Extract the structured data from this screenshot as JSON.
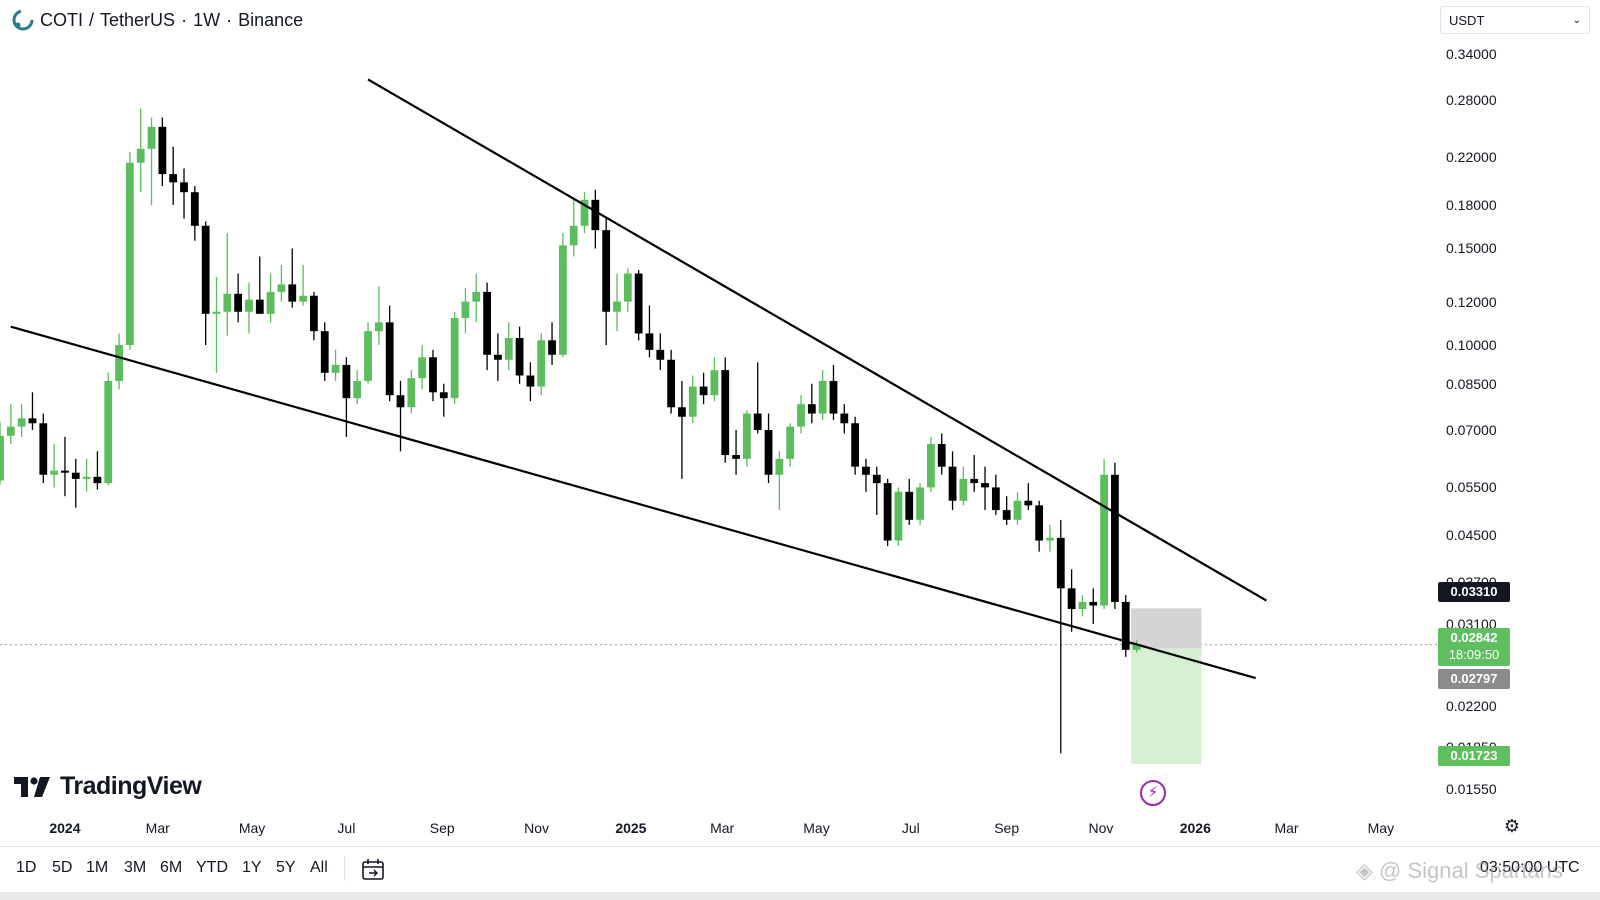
{
  "header": {
    "symbol": "COTI",
    "separator": "/",
    "quote": "TetherUS",
    "interval": "1W",
    "exchange": "Binance"
  },
  "currency_select": {
    "value": "USDT"
  },
  "price_axis_labels": [
    "0.34000",
    "0.28000",
    "0.22000",
    "0.18000",
    "0.15000",
    "0.12000",
    "0.10000",
    "0.08500",
    "0.07000",
    "0.05500",
    "0.04500",
    "0.03700",
    "0.03100",
    "0.02200",
    "0.01850",
    "0.01550"
  ],
  "badges": {
    "stop": "0.03310",
    "last_price": "0.02842",
    "countdown": "18:09:50",
    "entry": "0.02797",
    "target": "0.01723"
  },
  "time_axis_labels": [
    {
      "text": "2024",
      "bold": true
    },
    {
      "text": "Mar",
      "bold": false
    },
    {
      "text": "May",
      "bold": false
    },
    {
      "text": "Jul",
      "bold": false
    },
    {
      "text": "Sep",
      "bold": false
    },
    {
      "text": "Nov",
      "bold": false
    },
    {
      "text": "2025",
      "bold": true
    },
    {
      "text": "Mar",
      "bold": false
    },
    {
      "text": "May",
      "bold": false
    },
    {
      "text": "Jul",
      "bold": false
    },
    {
      "text": "Sep",
      "bold": false
    },
    {
      "text": "Nov",
      "bold": false
    },
    {
      "text": "2026",
      "bold": true
    },
    {
      "text": "Mar",
      "bold": false
    },
    {
      "text": "May",
      "bold": false
    }
  ],
  "brand": {
    "name": "TradingView"
  },
  "range_buttons": [
    "1D",
    "5D",
    "1M",
    "3M",
    "6M",
    "YTD",
    "1Y",
    "5Y",
    "All"
  ],
  "utc_time": "03:50:00 UTC",
  "watermark": "@ Signal Spartans",
  "colors": {
    "up": "#5cbd5c",
    "down": "#000000",
    "target_zone": "#d7efd3",
    "stop_zone": "#cfcfcf",
    "trendline": "#000000",
    "accent": "#9c27b0"
  },
  "icons": {
    "logo": "coti-logo-icon",
    "chevron": "chevron-down-icon",
    "bolt": "lightning-icon",
    "gear": "gear-icon",
    "calendar": "calendar-goto-icon",
    "watermark": "binance-icon"
  },
  "chart_data": {
    "type": "candlestick",
    "symbol": "COTI / TetherUS",
    "interval": "1W",
    "scale": "log",
    "ylim": [
      0.0148,
      0.36
    ],
    "x_range": [
      "2023-11-20",
      "2026-05-25"
    ],
    "candles": [
      {
        "date": "2023-11-20",
        "open": 0.0566,
        "high": 0.0725,
        "low": 0.0555,
        "close": 0.0683
      },
      {
        "date": "2023-11-27",
        "open": 0.0683,
        "high": 0.078,
        "low": 0.066,
        "close": 0.071
      },
      {
        "date": "2023-12-04",
        "open": 0.071,
        "high": 0.078,
        "low": 0.068,
        "close": 0.0735
      },
      {
        "date": "2023-12-11",
        "open": 0.0735,
        "high": 0.082,
        "low": 0.07,
        "close": 0.072
      },
      {
        "date": "2023-12-18",
        "open": 0.072,
        "high": 0.075,
        "low": 0.056,
        "close": 0.058
      },
      {
        "date": "2023-12-25",
        "open": 0.058,
        "high": 0.066,
        "low": 0.055,
        "close": 0.059
      },
      {
        "date": "2024-01-01",
        "open": 0.059,
        "high": 0.068,
        "low": 0.053,
        "close": 0.0585
      },
      {
        "date": "2024-01-08",
        "open": 0.0585,
        "high": 0.062,
        "low": 0.0505,
        "close": 0.057
      },
      {
        "date": "2024-01-15",
        "open": 0.057,
        "high": 0.062,
        "low": 0.054,
        "close": 0.0575
      },
      {
        "date": "2024-01-22",
        "open": 0.0575,
        "high": 0.064,
        "low": 0.0545,
        "close": 0.056
      },
      {
        "date": "2024-01-29",
        "open": 0.056,
        "high": 0.089,
        "low": 0.0555,
        "close": 0.086
      },
      {
        "date": "2024-02-05",
        "open": 0.086,
        "high": 0.105,
        "low": 0.083,
        "close": 0.1
      },
      {
        "date": "2024-02-12",
        "open": 0.1,
        "high": 0.225,
        "low": 0.098,
        "close": 0.215
      },
      {
        "date": "2024-02-19",
        "open": 0.215,
        "high": 0.27,
        "low": 0.19,
        "close": 0.228
      },
      {
        "date": "2024-02-26",
        "open": 0.228,
        "high": 0.26,
        "low": 0.18,
        "close": 0.25
      },
      {
        "date": "2024-03-04",
        "open": 0.25,
        "high": 0.26,
        "low": 0.195,
        "close": 0.205
      },
      {
        "date": "2024-03-11",
        "open": 0.205,
        "high": 0.23,
        "low": 0.18,
        "close": 0.198
      },
      {
        "date": "2024-03-18",
        "open": 0.198,
        "high": 0.21,
        "low": 0.17,
        "close": 0.19
      },
      {
        "date": "2024-03-25",
        "open": 0.19,
        "high": 0.195,
        "low": 0.155,
        "close": 0.165
      },
      {
        "date": "2024-04-01",
        "open": 0.165,
        "high": 0.168,
        "low": 0.1,
        "close": 0.114
      },
      {
        "date": "2024-04-08",
        "open": 0.114,
        "high": 0.133,
        "low": 0.089,
        "close": 0.115
      },
      {
        "date": "2024-04-15",
        "open": 0.115,
        "high": 0.16,
        "low": 0.104,
        "close": 0.124
      },
      {
        "date": "2024-04-22",
        "open": 0.124,
        "high": 0.135,
        "low": 0.11,
        "close": 0.115
      },
      {
        "date": "2024-04-29",
        "open": 0.115,
        "high": 0.13,
        "low": 0.105,
        "close": 0.121
      },
      {
        "date": "2024-05-06",
        "open": 0.121,
        "high": 0.145,
        "low": 0.116,
        "close": 0.114
      },
      {
        "date": "2024-05-13",
        "open": 0.114,
        "high": 0.135,
        "low": 0.11,
        "close": 0.125
      },
      {
        "date": "2024-05-20",
        "open": 0.125,
        "high": 0.14,
        "low": 0.12,
        "close": 0.129
      },
      {
        "date": "2024-05-27",
        "open": 0.129,
        "high": 0.15,
        "low": 0.117,
        "close": 0.12
      },
      {
        "date": "2024-06-03",
        "open": 0.12,
        "high": 0.14,
        "low": 0.118,
        "close": 0.123
      },
      {
        "date": "2024-06-10",
        "open": 0.123,
        "high": 0.125,
        "low": 0.102,
        "close": 0.106
      },
      {
        "date": "2024-06-17",
        "open": 0.106,
        "high": 0.11,
        "low": 0.086,
        "close": 0.089
      },
      {
        "date": "2024-06-24",
        "open": 0.089,
        "high": 0.098,
        "low": 0.086,
        "close": 0.092
      },
      {
        "date": "2024-07-01",
        "open": 0.092,
        "high": 0.095,
        "low": 0.068,
        "close": 0.08
      },
      {
        "date": "2024-07-08",
        "open": 0.08,
        "high": 0.09,
        "low": 0.078,
        "close": 0.086
      },
      {
        "date": "2024-07-15",
        "open": 0.086,
        "high": 0.11,
        "low": 0.085,
        "close": 0.106
      },
      {
        "date": "2024-07-22",
        "open": 0.106,
        "high": 0.128,
        "low": 0.1,
        "close": 0.11
      },
      {
        "date": "2024-07-29",
        "open": 0.11,
        "high": 0.118,
        "low": 0.079,
        "close": 0.081
      },
      {
        "date": "2024-08-05",
        "open": 0.081,
        "high": 0.086,
        "low": 0.064,
        "close": 0.077
      },
      {
        "date": "2024-08-12",
        "open": 0.077,
        "high": 0.09,
        "low": 0.075,
        "close": 0.087
      },
      {
        "date": "2024-08-19",
        "open": 0.087,
        "high": 0.1,
        "low": 0.083,
        "close": 0.095
      },
      {
        "date": "2024-08-26",
        "open": 0.095,
        "high": 0.098,
        "low": 0.079,
        "close": 0.082
      },
      {
        "date": "2024-09-02",
        "open": 0.082,
        "high": 0.085,
        "low": 0.074,
        "close": 0.08
      },
      {
        "date": "2024-09-09",
        "open": 0.08,
        "high": 0.115,
        "low": 0.078,
        "close": 0.112
      },
      {
        "date": "2024-09-16",
        "open": 0.112,
        "high": 0.127,
        "low": 0.105,
        "close": 0.12
      },
      {
        "date": "2024-09-23",
        "open": 0.12,
        "high": 0.135,
        "low": 0.11,
        "close": 0.125
      },
      {
        "date": "2024-09-30",
        "open": 0.125,
        "high": 0.13,
        "low": 0.09,
        "close": 0.096
      },
      {
        "date": "2024-10-07",
        "open": 0.096,
        "high": 0.105,
        "low": 0.086,
        "close": 0.094
      },
      {
        "date": "2024-10-14",
        "open": 0.094,
        "high": 0.11,
        "low": 0.09,
        "close": 0.103
      },
      {
        "date": "2024-10-21",
        "open": 0.103,
        "high": 0.108,
        "low": 0.085,
        "close": 0.088
      },
      {
        "date": "2024-10-28",
        "open": 0.088,
        "high": 0.093,
        "low": 0.079,
        "close": 0.084
      },
      {
        "date": "2024-11-04",
        "open": 0.084,
        "high": 0.105,
        "low": 0.081,
        "close": 0.102
      },
      {
        "date": "2024-11-11",
        "open": 0.102,
        "high": 0.11,
        "low": 0.092,
        "close": 0.096
      },
      {
        "date": "2024-11-18",
        "open": 0.096,
        "high": 0.16,
        "low": 0.095,
        "close": 0.152
      },
      {
        "date": "2024-11-25",
        "open": 0.152,
        "high": 0.185,
        "low": 0.145,
        "close": 0.165
      },
      {
        "date": "2024-12-02",
        "open": 0.165,
        "high": 0.19,
        "low": 0.16,
        "close": 0.184
      },
      {
        "date": "2024-12-09",
        "open": 0.184,
        "high": 0.192,
        "low": 0.15,
        "close": 0.162
      },
      {
        "date": "2024-12-16",
        "open": 0.162,
        "high": 0.17,
        "low": 0.1,
        "close": 0.115
      },
      {
        "date": "2024-12-23",
        "open": 0.115,
        "high": 0.135,
        "low": 0.106,
        "close": 0.12
      },
      {
        "date": "2024-12-30",
        "open": 0.12,
        "high": 0.138,
        "low": 0.115,
        "close": 0.135
      },
      {
        "date": "2025-01-06",
        "open": 0.135,
        "high": 0.137,
        "low": 0.102,
        "close": 0.105
      },
      {
        "date": "2025-01-13",
        "open": 0.105,
        "high": 0.118,
        "low": 0.095,
        "close": 0.098
      },
      {
        "date": "2025-01-20",
        "open": 0.098,
        "high": 0.105,
        "low": 0.09,
        "close": 0.094
      },
      {
        "date": "2025-01-27",
        "open": 0.094,
        "high": 0.098,
        "low": 0.075,
        "close": 0.077
      },
      {
        "date": "2025-02-03",
        "open": 0.077,
        "high": 0.086,
        "low": 0.057,
        "close": 0.074
      },
      {
        "date": "2025-02-10",
        "open": 0.074,
        "high": 0.088,
        "low": 0.072,
        "close": 0.084
      },
      {
        "date": "2025-02-17",
        "open": 0.084,
        "high": 0.089,
        "low": 0.078,
        "close": 0.081
      },
      {
        "date": "2025-02-24",
        "open": 0.081,
        "high": 0.095,
        "low": 0.079,
        "close": 0.09
      },
      {
        "date": "2025-03-03",
        "open": 0.09,
        "high": 0.095,
        "low": 0.061,
        "close": 0.063
      },
      {
        "date": "2025-03-10",
        "open": 0.063,
        "high": 0.07,
        "low": 0.058,
        "close": 0.062
      },
      {
        "date": "2025-03-17",
        "open": 0.062,
        "high": 0.076,
        "low": 0.06,
        "close": 0.075
      },
      {
        "date": "2025-03-24",
        "open": 0.075,
        "high": 0.093,
        "low": 0.069,
        "close": 0.07
      },
      {
        "date": "2025-03-31",
        "open": 0.07,
        "high": 0.075,
        "low": 0.056,
        "close": 0.058
      },
      {
        "date": "2025-04-07",
        "open": 0.058,
        "high": 0.064,
        "low": 0.05,
        "close": 0.062
      },
      {
        "date": "2025-04-14",
        "open": 0.062,
        "high": 0.072,
        "low": 0.06,
        "close": 0.071
      },
      {
        "date": "2025-04-21",
        "open": 0.071,
        "high": 0.081,
        "low": 0.069,
        "close": 0.078
      },
      {
        "date": "2025-04-28",
        "open": 0.078,
        "high": 0.085,
        "low": 0.072,
        "close": 0.075
      },
      {
        "date": "2025-05-05",
        "open": 0.075,
        "high": 0.09,
        "low": 0.073,
        "close": 0.086
      },
      {
        "date": "2025-05-12",
        "open": 0.086,
        "high": 0.092,
        "low": 0.073,
        "close": 0.075
      },
      {
        "date": "2025-05-19",
        "open": 0.075,
        "high": 0.078,
        "low": 0.069,
        "close": 0.072
      },
      {
        "date": "2025-05-26",
        "open": 0.072,
        "high": 0.074,
        "low": 0.058,
        "close": 0.06
      },
      {
        "date": "2025-06-02",
        "open": 0.06,
        "high": 0.062,
        "low": 0.054,
        "close": 0.058
      },
      {
        "date": "2025-06-09",
        "open": 0.058,
        "high": 0.06,
        "low": 0.049,
        "close": 0.056
      },
      {
        "date": "2025-06-16",
        "open": 0.056,
        "high": 0.057,
        "low": 0.043,
        "close": 0.044
      },
      {
        "date": "2025-06-23",
        "open": 0.044,
        "high": 0.055,
        "low": 0.043,
        "close": 0.054
      },
      {
        "date": "2025-06-30",
        "open": 0.054,
        "high": 0.057,
        "low": 0.047,
        "close": 0.048
      },
      {
        "date": "2025-07-07",
        "open": 0.048,
        "high": 0.056,
        "low": 0.047,
        "close": 0.055
      },
      {
        "date": "2025-07-14",
        "open": 0.055,
        "high": 0.068,
        "low": 0.054,
        "close": 0.066
      },
      {
        "date": "2025-07-21",
        "open": 0.066,
        "high": 0.069,
        "low": 0.058,
        "close": 0.06
      },
      {
        "date": "2025-07-28",
        "open": 0.06,
        "high": 0.064,
        "low": 0.05,
        "close": 0.052
      },
      {
        "date": "2025-08-04",
        "open": 0.052,
        "high": 0.06,
        "low": 0.051,
        "close": 0.057
      },
      {
        "date": "2025-08-11",
        "open": 0.057,
        "high": 0.063,
        "low": 0.054,
        "close": 0.056
      },
      {
        "date": "2025-08-18",
        "open": 0.056,
        "high": 0.06,
        "low": 0.05,
        "close": 0.055
      },
      {
        "date": "2025-08-25",
        "open": 0.055,
        "high": 0.058,
        "low": 0.049,
        "close": 0.05
      },
      {
        "date": "2025-09-01",
        "open": 0.05,
        "high": 0.053,
        "low": 0.047,
        "close": 0.048
      },
      {
        "date": "2025-09-08",
        "open": 0.048,
        "high": 0.054,
        "low": 0.047,
        "close": 0.052
      },
      {
        "date": "2025-09-15",
        "open": 0.052,
        "high": 0.056,
        "low": 0.05,
        "close": 0.051
      },
      {
        "date": "2025-09-22",
        "open": 0.051,
        "high": 0.052,
        "low": 0.042,
        "close": 0.044
      },
      {
        "date": "2025-09-29",
        "open": 0.044,
        "high": 0.047,
        "low": 0.042,
        "close": 0.0445
      },
      {
        "date": "2025-10-06",
        "open": 0.0445,
        "high": 0.048,
        "low": 0.018,
        "close": 0.036
      },
      {
        "date": "2025-10-13",
        "open": 0.036,
        "high": 0.039,
        "low": 0.03,
        "close": 0.033
      },
      {
        "date": "2025-10-20",
        "open": 0.033,
        "high": 0.035,
        "low": 0.032,
        "close": 0.034
      },
      {
        "date": "2025-10-27",
        "open": 0.034,
        "high": 0.036,
        "low": 0.031,
        "close": 0.0335
      },
      {
        "date": "2025-11-03",
        "open": 0.0335,
        "high": 0.062,
        "low": 0.033,
        "close": 0.058
      },
      {
        "date": "2025-11-10",
        "open": 0.058,
        "high": 0.061,
        "low": 0.033,
        "close": 0.034
      },
      {
        "date": "2025-11-17",
        "open": 0.034,
        "high": 0.035,
        "low": 0.027,
        "close": 0.0278
      },
      {
        "date": "2025-11-24",
        "open": 0.0278,
        "high": 0.029,
        "low": 0.0275,
        "close": 0.0284
      }
    ],
    "trendlines": [
      {
        "name": "upper",
        "points": [
          [
            "2024-07-15",
            0.305
          ],
          [
            "2026-02-16",
            0.0342
          ]
        ]
      },
      {
        "name": "lower",
        "points": [
          [
            "2023-11-27",
            0.108
          ],
          [
            "2026-02-09",
            0.0247
          ]
        ]
      }
    ],
    "position_tool": {
      "start": "2025-11-24",
      "end": "2026-01-05",
      "entry": 0.02797,
      "stop": 0.0331,
      "target": 0.01723
    },
    "last_price": 0.02842
  }
}
